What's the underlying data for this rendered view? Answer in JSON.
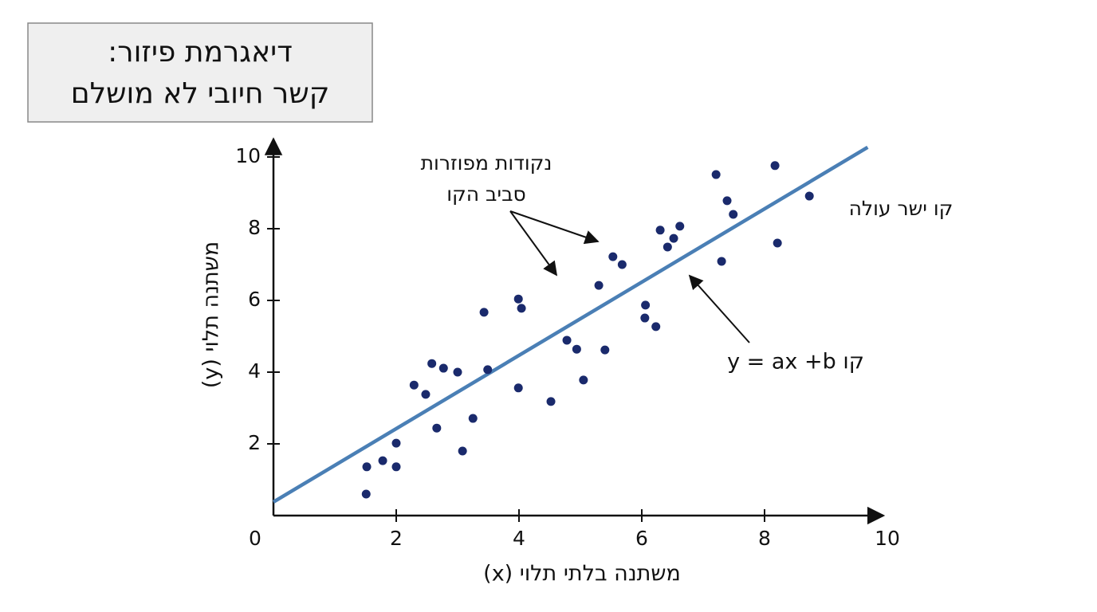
{
  "chart_data": {
    "type": "scatter",
    "title": [
      "דיאגרמת פיזור:",
      "קשר חיובי לא מושלם"
    ],
    "x_label": "משתנה בלתי תלוי (x)",
    "y_label": "משתנה תלוי (y)",
    "annotations": {
      "scatter_note": [
        "נקודות מפוזרות",
        "סביב הקו"
      ],
      "line_note": "קו ישר עולה",
      "equation_note": "קו y = ax +b"
    },
    "xlim": [
      0,
      10
    ],
    "ylim": [
      0,
      10.5
    ],
    "xticks": [
      0,
      2,
      4,
      6,
      8,
      10
    ],
    "yticks": [
      2,
      4,
      6,
      8,
      10
    ],
    "point_color": "#1a2a6c",
    "x": [
      1.51,
      1.52,
      1.78,
      2.0,
      2.0,
      2.29,
      2.48,
      2.58,
      2.66,
      2.77,
      3.0,
      3.08,
      3.25,
      3.43,
      3.49,
      3.99,
      4.04,
      3.99,
      4.52,
      4.78,
      4.94,
      5.05,
      5.3,
      5.4,
      5.53,
      5.68,
      6.06,
      6.05,
      6.23,
      6.3,
      6.52,
      6.42,
      6.62,
      7.21,
      7.3,
      7.39,
      7.49,
      8.17,
      8.21,
      8.73
    ],
    "values": [
      0.6,
      1.36,
      1.53,
      1.36,
      2.02,
      3.64,
      3.38,
      4.24,
      2.44,
      4.11,
      4.0,
      1.8,
      2.71,
      5.67,
      4.07,
      6.04,
      5.78,
      3.56,
      3.18,
      4.89,
      4.64,
      3.78,
      6.42,
      4.62,
      7.22,
      7.0,
      5.87,
      5.51,
      5.27,
      7.96,
      7.73,
      7.49,
      8.07,
      9.51,
      7.09,
      8.78,
      8.4,
      9.76,
      7.6,
      8.91
    ],
    "trend_line": {
      "color": "#4a7fb5",
      "x": [
        0,
        9.68
      ],
      "values": [
        0.38,
        10.27
      ]
    }
  }
}
